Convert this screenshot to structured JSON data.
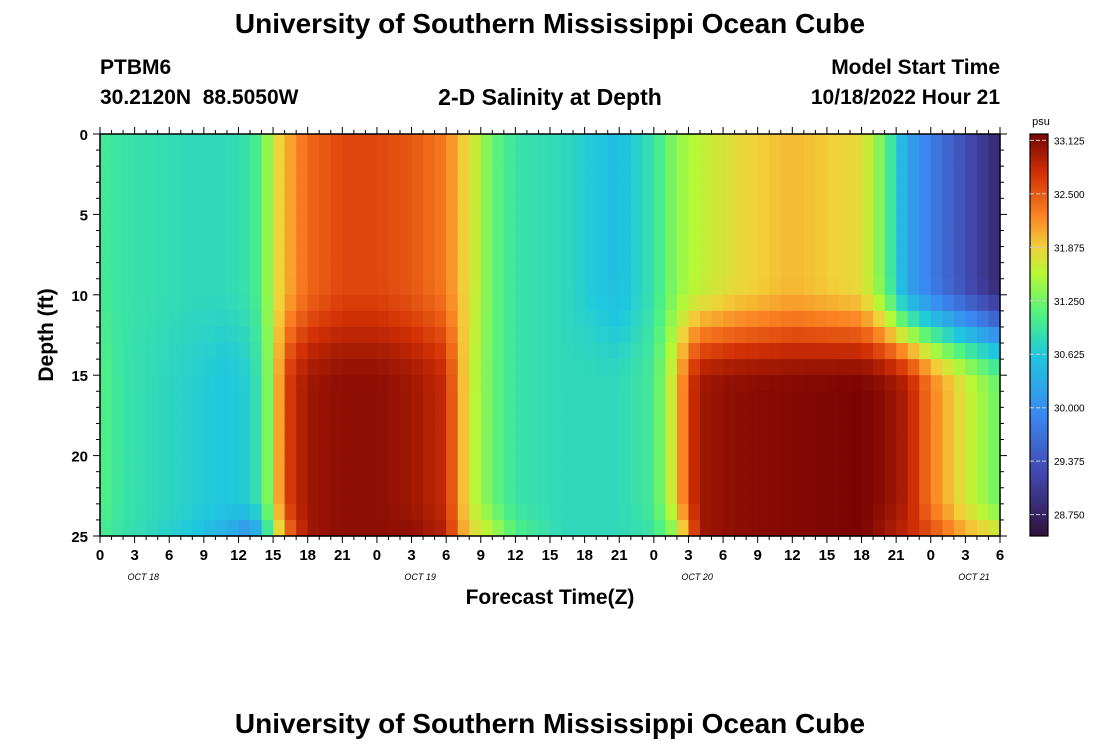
{
  "titles": {
    "main": "University of Southern Mississippi Ocean Cube",
    "footer": "University of Southern Mississippi Ocean Cube"
  },
  "header": {
    "station": "PTBM6",
    "coords": "30.2120N  88.5050W",
    "plot_title": "2-D Salinity at Depth",
    "model_label": "Model Start Time",
    "model_time": "10/18/2022 Hour 21"
  },
  "chart_data": {
    "type": "heatmap",
    "title": "2-D Salinity at Depth",
    "xlabel": "Forecast Time(Z)",
    "ylabel": "Depth (ft)",
    "y_ticks": [
      "0",
      "5",
      "10",
      "15",
      "20",
      "25"
    ],
    "ylim": [
      0,
      25
    ],
    "x_tick_labels": [
      "0",
      "3",
      "6",
      "9",
      "12",
      "15",
      "18",
      "21",
      "0",
      "3",
      "6",
      "9",
      "12",
      "15",
      "18",
      "21",
      "0",
      "3",
      "6",
      "9",
      "12",
      "15",
      "18",
      "21",
      "0",
      "3",
      "6"
    ],
    "date_labels": [
      {
        "label": "OCT 18",
        "hour": 3.75
      },
      {
        "label": "OCT 19",
        "hour": 27.75
      },
      {
        "label": "OCT 20",
        "hour": 51.75
      },
      {
        "label": "OCT 21",
        "hour": 75.75
      }
    ],
    "x_range_hours": [
      0,
      78
    ],
    "colorbar": {
      "unit": "psu",
      "min": 28.5,
      "max": 33.2,
      "ticks": [
        "33.125",
        "32.500",
        "31.875",
        "31.250",
        "30.625",
        "30.000",
        "29.375",
        "28.750"
      ]
    },
    "columns": [
      {
        "h": 0,
        "surf": 31.0,
        "deep": 31.1,
        "bot": 31.0
      },
      {
        "h": 2,
        "surf": 30.9,
        "deep": 30.9,
        "bot": 30.9
      },
      {
        "h": 5,
        "surf": 30.85,
        "deep": 30.8,
        "bot": 30.75
      },
      {
        "h": 8,
        "surf": 30.8,
        "deep": 30.7,
        "bot": 30.6
      },
      {
        "h": 11,
        "surf": 30.8,
        "deep": 30.6,
        "bot": 30.3
      },
      {
        "h": 13,
        "surf": 30.9,
        "deep": 30.7,
        "bot": 29.9
      },
      {
        "h": 14,
        "surf": 31.1,
        "deep": 31.0,
        "bot": 30.4
      },
      {
        "h": 15,
        "surf": 31.7,
        "deep": 31.6,
        "bot": 31.3
      },
      {
        "h": 16,
        "surf": 32.0,
        "deep": 32.6,
        "bot": 32.2
      },
      {
        "h": 18,
        "surf": 32.4,
        "deep": 33.0,
        "bot": 33.0
      },
      {
        "h": 21,
        "surf": 32.6,
        "deep": 33.1,
        "bot": 33.1
      },
      {
        "h": 24,
        "surf": 32.6,
        "deep": 33.1,
        "bot": 33.1
      },
      {
        "h": 27,
        "surf": 32.5,
        "deep": 33.0,
        "bot": 33.1
      },
      {
        "h": 30,
        "surf": 32.3,
        "deep": 32.8,
        "bot": 32.9
      },
      {
        "h": 31,
        "surf": 32.0,
        "deep": 32.2,
        "bot": 32.3
      },
      {
        "h": 32,
        "surf": 31.8,
        "deep": 31.7,
        "bot": 31.9
      },
      {
        "h": 34,
        "surf": 31.2,
        "deep": 31.2,
        "bot": 31.6
      },
      {
        "h": 36,
        "surf": 30.9,
        "deep": 30.9,
        "bot": 31.1
      },
      {
        "h": 40,
        "surf": 30.8,
        "deep": 30.8,
        "bot": 30.8
      },
      {
        "h": 45,
        "surf": 30.5,
        "deep": 30.8,
        "bot": 30.8
      },
      {
        "h": 48,
        "surf": 30.9,
        "deep": 31.0,
        "bot": 30.9
      },
      {
        "h": 50,
        "surf": 31.4,
        "deep": 31.9,
        "bot": 31.4
      },
      {
        "h": 51,
        "surf": 31.5,
        "deep": 32.6,
        "bot": 32.2
      },
      {
        "h": 52,
        "surf": 31.6,
        "deep": 33.0,
        "bot": 33.0
      },
      {
        "h": 55,
        "surf": 31.8,
        "deep": 33.1,
        "bot": 33.1
      },
      {
        "h": 60,
        "surf": 32.0,
        "deep": 33.15,
        "bot": 33.15
      },
      {
        "h": 66,
        "surf": 31.8,
        "deep": 33.2,
        "bot": 33.2
      },
      {
        "h": 68,
        "surf": 31.2,
        "deep": 33.1,
        "bot": 33.0
      },
      {
        "h": 70,
        "surf": 30.2,
        "deep": 32.9,
        "bot": 32.8
      },
      {
        "h": 72,
        "surf": 29.8,
        "deep": 32.3,
        "bot": 32.6
      },
      {
        "h": 75,
        "surf": 29.3,
        "deep": 31.7,
        "bot": 32.1
      },
      {
        "h": 78,
        "surf": 28.8,
        "deep": 31.2,
        "bot": 31.8
      }
    ]
  }
}
